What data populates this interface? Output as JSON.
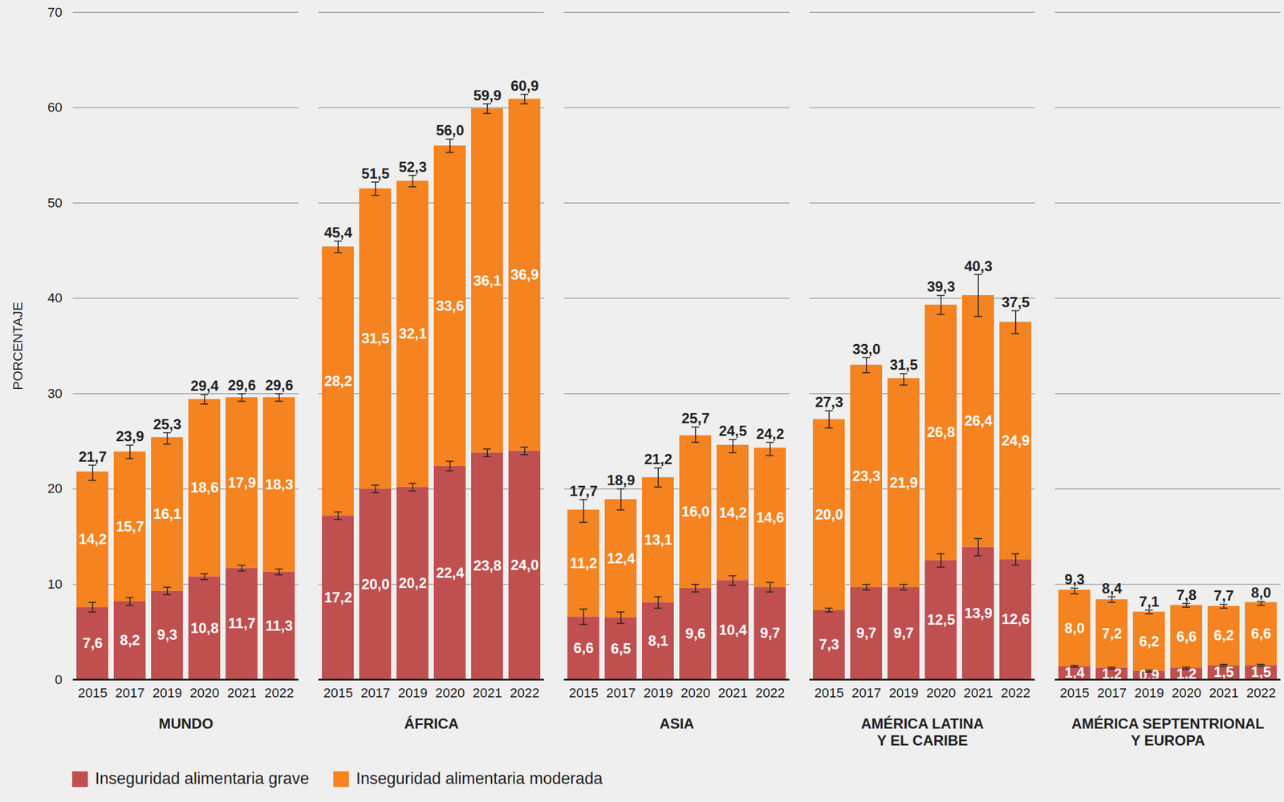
{
  "chart_data": {
    "type": "bar",
    "stacked": true,
    "data_labels": true,
    "grid": true,
    "legend": "bottom",
    "y_label": "PORCENTAJE",
    "ylim": [
      0,
      70
    ],
    "yticks": [
      0,
      10,
      20,
      30,
      40,
      50,
      60,
      70
    ],
    "groups": [
      "MUNDO",
      "ÁFRICA",
      "ASIA",
      "AMÉRICA LATINA\nY EL CARIBE",
      "AMÉRICA SEPTENTRIONAL\nY EUROPA"
    ],
    "categories": [
      "2015",
      "2017",
      "2019",
      "2020",
      "2021",
      "2022"
    ],
    "series": [
      {
        "name": "Inseguridad alimentaria grave",
        "color": "#c0504f",
        "values": [
          [
            7.6,
            8.2,
            9.3,
            10.8,
            11.7,
            11.3
          ],
          [
            17.2,
            20.0,
            20.2,
            22.4,
            23.8,
            24.0
          ],
          [
            6.6,
            6.5,
            8.1,
            9.6,
            10.4,
            9.7
          ],
          [
            7.3,
            9.7,
            9.7,
            12.5,
            13.9,
            12.6
          ],
          [
            1.4,
            1.2,
            0.9,
            1.2,
            1.5,
            1.5
          ]
        ],
        "value_labels": [
          [
            "7,6",
            "8,2",
            "9,3",
            "10,8",
            "11,7",
            "11,3"
          ],
          [
            "17,2",
            "20,0",
            "20,2",
            "22,4",
            "23,8",
            "24,0"
          ],
          [
            "6,6",
            "6,5",
            "8,1",
            "9,6",
            "10,4",
            "9,7"
          ],
          [
            "7,3",
            "9,7",
            "9,7",
            "12,5",
            "13,9",
            "12,6"
          ],
          [
            "1,4",
            "1,2",
            "0,9",
            "1,2",
            "1,5",
            "1,5"
          ]
        ],
        "errors": [
          [
            0.5,
            0.4,
            0.4,
            0.3,
            0.3,
            0.3
          ],
          [
            0.4,
            0.4,
            0.4,
            0.5,
            0.4,
            0.4
          ],
          [
            0.8,
            0.6,
            0.6,
            0.4,
            0.5,
            0.5
          ],
          [
            0.2,
            0.3,
            0.3,
            0.7,
            0.9,
            0.6
          ],
          [
            0.1,
            0.1,
            0.1,
            0.1,
            0.1,
            0.1
          ]
        ]
      },
      {
        "name": "Inseguridad alimentaria moderada",
        "color": "#f5831f",
        "values": [
          [
            14.2,
            15.7,
            16.1,
            18.6,
            17.9,
            18.3
          ],
          [
            28.2,
            31.5,
            32.1,
            33.6,
            36.1,
            36.9
          ],
          [
            11.2,
            12.4,
            13.1,
            16.0,
            14.2,
            14.6
          ],
          [
            20.0,
            23.3,
            21.9,
            26.8,
            26.4,
            24.9
          ],
          [
            8.0,
            7.2,
            6.2,
            6.6,
            6.2,
            6.6
          ]
        ],
        "value_labels": [
          [
            "14,2",
            "15,7",
            "16,1",
            "18,6",
            "17,9",
            "18,3"
          ],
          [
            "28,2",
            "31,5",
            "32,1",
            "33,6",
            "36,1",
            "36,9"
          ],
          [
            "11,2",
            "12,4",
            "13,1",
            "16,0",
            "14,2",
            "14,6"
          ],
          [
            "20,0",
            "23,3",
            "21,9",
            "26,8",
            "26,4",
            "24,9"
          ],
          [
            "8,0",
            "7,2",
            "6,2",
            "6,6",
            "6,2",
            "6,6"
          ]
        ]
      }
    ],
    "totals": {
      "values": [
        [
          21.7,
          23.9,
          25.3,
          29.4,
          29.6,
          29.6
        ],
        [
          45.4,
          51.5,
          52.3,
          56.0,
          59.9,
          60.9
        ],
        [
          17.7,
          18.9,
          21.2,
          25.7,
          24.5,
          24.2
        ],
        [
          27.3,
          33.0,
          31.5,
          39.3,
          40.3,
          37.5
        ],
        [
          9.3,
          8.4,
          7.1,
          7.8,
          7.7,
          8.0
        ]
      ],
      "value_labels": [
        [
          "21,7",
          "23,9",
          "25,3",
          "29,4",
          "29,6",
          "29,6"
        ],
        [
          "45,4",
          "51,5",
          "52,3",
          "56,0",
          "59,9",
          "60,9"
        ],
        [
          "17,7",
          "18,9",
          "21,2",
          "25,7",
          "24,5",
          "24,2"
        ],
        [
          "27,3",
          "33,0",
          "31,5",
          "39,3",
          "40,3",
          "37,5"
        ],
        [
          "9,3",
          "8,4",
          "7,1",
          "7,8",
          "7,7",
          "8,0"
        ]
      ],
      "errors": [
        [
          0.8,
          0.7,
          0.6,
          0.5,
          0.4,
          0.4
        ],
        [
          0.6,
          0.7,
          0.6,
          0.7,
          0.5,
          0.5
        ],
        [
          1.2,
          1.1,
          1.0,
          0.8,
          0.7,
          0.7
        ],
        [
          0.9,
          0.8,
          0.6,
          1.0,
          2.2,
          1.2
        ],
        [
          0.3,
          0.3,
          0.2,
          0.2,
          0.2,
          0.2
        ]
      ]
    }
  }
}
